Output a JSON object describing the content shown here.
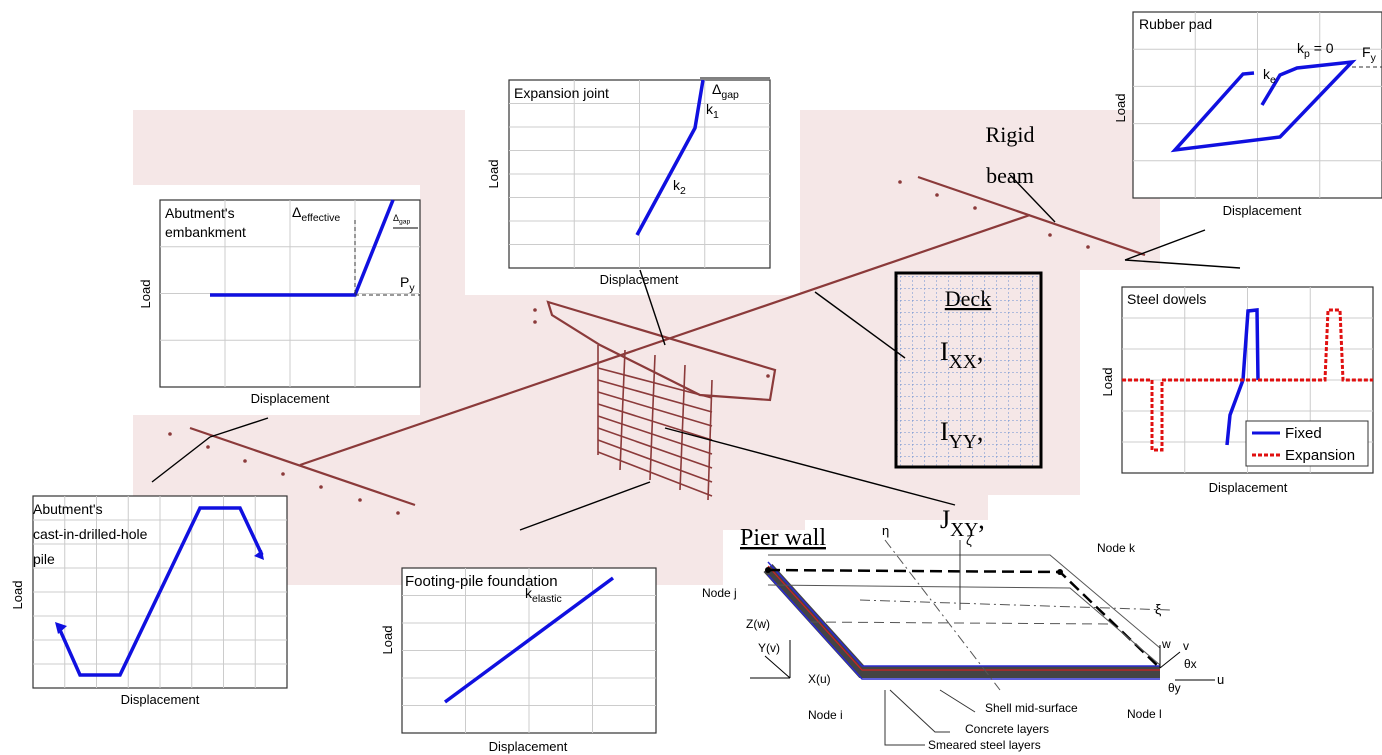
{
  "expansion_joint": {
    "title": "Expansion joint",
    "gap": {
      "base": "Δ",
      "sub": "gap"
    },
    "k1": {
      "base": "k",
      "sub": "1"
    },
    "k2": {
      "base": "k",
      "sub": "2"
    },
    "y_label": "Load",
    "x_label": "Displacement"
  },
  "embankment": {
    "title_lines": [
      "Abutment's",
      "embankment"
    ],
    "effective": {
      "base": "Δ",
      "sub": "effective"
    },
    "gap": {
      "base": "Δ",
      "sub": "gap"
    },
    "py": {
      "base": "P",
      "sub": "y"
    },
    "y_label": "Load",
    "x_label": "Displacement"
  },
  "rubber_pad": {
    "title": "Rubber pad",
    "kp": {
      "base": "k",
      "sub": "p",
      "tail": " = 0"
    },
    "ke": {
      "base": "k",
      "sub": "e"
    },
    "fy": {
      "base": "F",
      "sub": "y"
    },
    "y_label": "Load",
    "x_label": "Displacement"
  },
  "steel_dowels": {
    "title": "Steel dowels",
    "legend": [
      "Fixed",
      "Expansion"
    ],
    "y_label": "Load",
    "x_label": "Displacement"
  },
  "pile": {
    "title_lines": [
      "Abutment's",
      "cast-in-drilled-hole",
      "pile"
    ],
    "y_label": "Load",
    "x_label": "Displacement"
  },
  "footing": {
    "title": "Footing-pile foundation",
    "k_elastic": {
      "base": "k",
      "sub": "elastic"
    },
    "y_label": "Load",
    "x_label": "Displacement"
  },
  "deck": {
    "title": "Deck",
    "ixx": {
      "base": "I",
      "sub": "XX",
      "tail": ","
    },
    "iyy": {
      "base": "I",
      "sub": "YY",
      "tail": ","
    },
    "jxy": {
      "base": "J",
      "sub": "XY",
      "tail": ","
    }
  },
  "rigid_beam": [
    "Rigid",
    "beam"
  ],
  "pier_wall": {
    "title": "Pier wall",
    "node_k": "Node k",
    "node_j": "Node j",
    "node_i": "Node i",
    "node_l": "Node l",
    "eta": "η",
    "xi": "ξ",
    "zeta": "ζ",
    "zw": "Z(w)",
    "yv": "Y(v)",
    "xu": "X(u)",
    "w": "w",
    "v": "v",
    "u": "u",
    "thx": "θx",
    "thy": "θy",
    "shell": "Shell mid-surface",
    "concrete": "Concrete layers",
    "steel": "Smeared steel layers"
  }
}
